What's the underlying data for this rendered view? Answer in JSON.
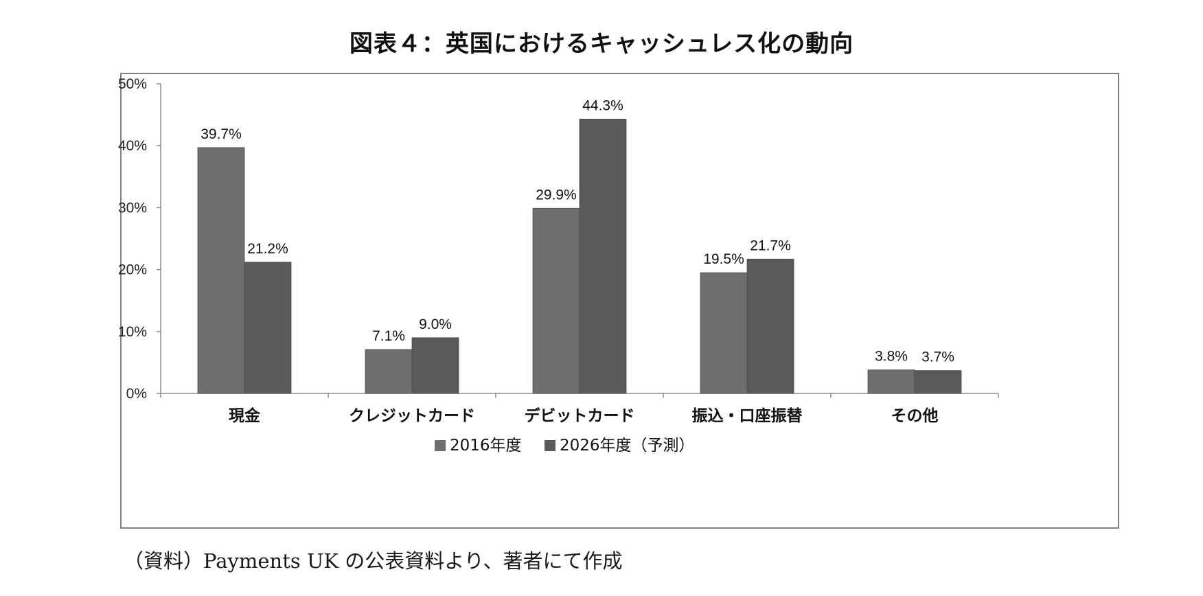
{
  "title": "図表４：英国におけるキャッシュレス化の動向",
  "source_note": "（資料）Payments UK の公表資料より、著者にて作成",
  "colors": {
    "series_2016": "#6e6e6e",
    "series_2026": "#5a5a5a",
    "axis": "#8c8c8c"
  },
  "chart_data": {
    "type": "bar",
    "title": "図表４：英国におけるキャッシュレス化の動向",
    "categories": [
      "現金",
      "クレジットカード",
      "デビットカード",
      "振込・口座振替",
      "その他"
    ],
    "series": [
      {
        "name": "2016年度",
        "values": [
          39.7,
          7.1,
          29.9,
          19.5,
          3.8
        ],
        "labels": [
          "39.7%",
          "7.1%",
          "29.9%",
          "19.5%",
          "3.8%"
        ]
      },
      {
        "name": "2026年度（予測）",
        "values": [
          21.2,
          9.0,
          44.3,
          21.7,
          3.7
        ],
        "labels": [
          "21.2%",
          "9.0%",
          "44.3%",
          "21.7%",
          "3.7%"
        ]
      }
    ],
    "ylim": [
      0,
      50
    ],
    "yticks": [
      0,
      10,
      20,
      30,
      40,
      50
    ],
    "ytick_labels": [
      "0%",
      "10%",
      "20%",
      "30%",
      "40%",
      "50%"
    ],
    "xlabel": "",
    "ylabel": "",
    "grid": false,
    "legend_position": "bottom"
  }
}
